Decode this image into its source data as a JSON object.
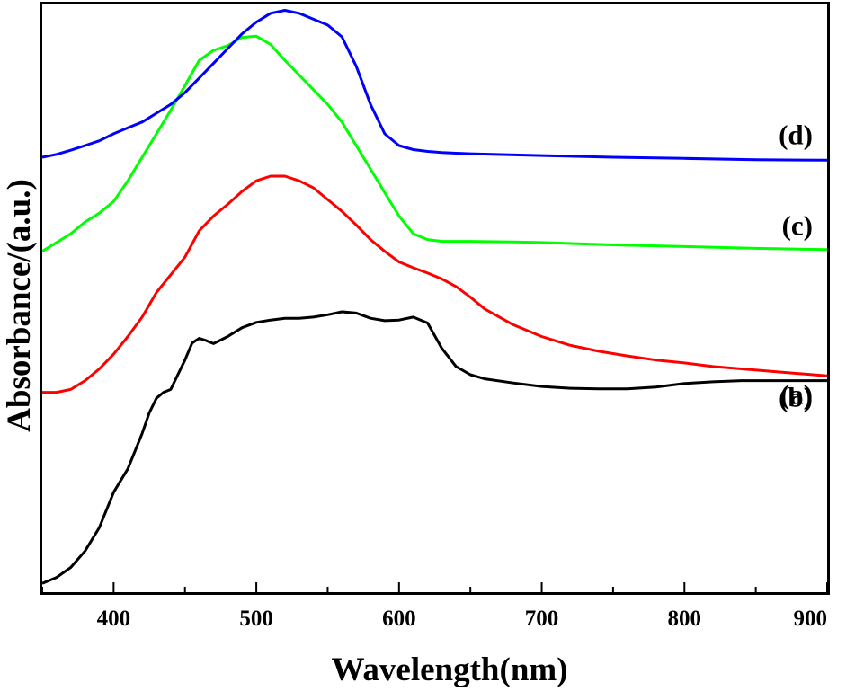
{
  "chart_data": {
    "type": "line",
    "title": "",
    "xlabel": "Wavelength(nm)",
    "ylabel": "Absorbance/(a.u.)",
    "xlim": [
      350,
      900
    ],
    "ylim": [
      0,
      1
    ],
    "x_ticks": [
      "400",
      "500",
      "600",
      "700",
      "800",
      "900"
    ],
    "y_ticks_shown": false,
    "grid": false,
    "legend": "inline labels at right end of each curve",
    "series": [
      {
        "name": "(a)",
        "color": "#000000",
        "x": [
          350,
          360,
          370,
          380,
          390,
          400,
          410,
          420,
          425,
          430,
          435,
          440,
          445,
          450,
          455,
          460,
          465,
          470,
          480,
          490,
          500,
          510,
          520,
          530,
          540,
          550,
          560,
          570,
          580,
          590,
          600,
          610,
          620,
          630,
          640,
          650,
          660,
          680,
          700,
          720,
          740,
          760,
          780,
          800,
          820,
          840,
          860,
          880,
          900
        ],
        "y": [
          0.015,
          0.025,
          0.042,
          0.07,
          0.11,
          0.17,
          0.21,
          0.27,
          0.305,
          0.33,
          0.34,
          0.345,
          0.37,
          0.395,
          0.424,
          0.432,
          0.428,
          0.423,
          0.435,
          0.45,
          0.459,
          0.463,
          0.466,
          0.466,
          0.468,
          0.472,
          0.477,
          0.475,
          0.466,
          0.462,
          0.463,
          0.468,
          0.458,
          0.415,
          0.384,
          0.37,
          0.363,
          0.356,
          0.35,
          0.347,
          0.346,
          0.346,
          0.349,
          0.355,
          0.358,
          0.36,
          0.36,
          0.36,
          0.36
        ]
      },
      {
        "name": "(b)",
        "color": "#ff0000",
        "x": [
          350,
          360,
          370,
          380,
          390,
          400,
          410,
          420,
          430,
          440,
          450,
          460,
          470,
          480,
          490,
          500,
          510,
          520,
          530,
          540,
          550,
          560,
          570,
          580,
          590,
          600,
          610,
          620,
          630,
          640,
          650,
          660,
          680,
          700,
          720,
          740,
          760,
          780,
          800,
          820,
          840,
          860,
          880,
          900
        ],
        "y": [
          0.34,
          0.34,
          0.345,
          0.36,
          0.38,
          0.405,
          0.435,
          0.468,
          0.51,
          0.54,
          0.57,
          0.615,
          0.64,
          0.66,
          0.682,
          0.7,
          0.708,
          0.708,
          0.7,
          0.688,
          0.668,
          0.648,
          0.625,
          0.6,
          0.58,
          0.562,
          0.552,
          0.543,
          0.533,
          0.52,
          0.502,
          0.482,
          0.455,
          0.435,
          0.42,
          0.41,
          0.402,
          0.395,
          0.39,
          0.384,
          0.38,
          0.376,
          0.372,
          0.368
        ]
      },
      {
        "name": "(c)",
        "color": "#00ff00",
        "x": [
          350,
          360,
          370,
          380,
          390,
          400,
          410,
          420,
          430,
          440,
          450,
          460,
          470,
          480,
          490,
          500,
          510,
          520,
          530,
          540,
          550,
          560,
          570,
          580,
          590,
          600,
          610,
          620,
          630,
          640,
          650,
          680,
          700,
          750,
          800,
          850,
          900
        ],
        "y": [
          0.58,
          0.595,
          0.61,
          0.63,
          0.645,
          0.665,
          0.7,
          0.74,
          0.78,
          0.82,
          0.862,
          0.905,
          0.922,
          0.93,
          0.944,
          0.946,
          0.932,
          0.905,
          0.88,
          0.855,
          0.83,
          0.8,
          0.76,
          0.72,
          0.68,
          0.64,
          0.61,
          0.6,
          0.597,
          0.597,
          0.597,
          0.596,
          0.595,
          0.591,
          0.588,
          0.585,
          0.583
        ]
      },
      {
        "name": "(d)",
        "color": "#0000ff",
        "x": [
          350,
          360,
          370,
          380,
          390,
          400,
          410,
          420,
          430,
          440,
          450,
          460,
          470,
          480,
          490,
          500,
          510,
          520,
          530,
          540,
          550,
          560,
          570,
          580,
          590,
          600,
          610,
          620,
          630,
          640,
          650,
          700,
          750,
          800,
          850,
          900
        ],
        "y": [
          0.74,
          0.745,
          0.752,
          0.76,
          0.768,
          0.78,
          0.79,
          0.8,
          0.815,
          0.83,
          0.85,
          0.875,
          0.9,
          0.925,
          0.95,
          0.97,
          0.985,
          0.99,
          0.985,
          0.975,
          0.965,
          0.945,
          0.895,
          0.83,
          0.78,
          0.76,
          0.753,
          0.75,
          0.748,
          0.747,
          0.746,
          0.743,
          0.74,
          0.738,
          0.736,
          0.735
        ]
      }
    ]
  }
}
